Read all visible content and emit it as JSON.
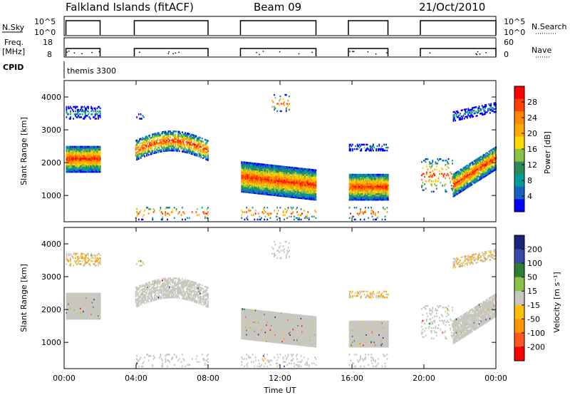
{
  "title": {
    "station": "Falkland Islands (fitACF)",
    "beam": "Beam 09",
    "date": "21/Oct/2010"
  },
  "header_panels": {
    "nsky_label": "N.Sky",
    "nsky_ticks": [
      "10^5",
      "10^0"
    ],
    "nsearch_label": "N.Search",
    "nsearch_ticks": [
      "10^5",
      "10^0"
    ],
    "freq_label": "Freq.",
    "freq_unit": "[MHz]",
    "freq_ticks": [
      "18",
      "8"
    ],
    "nave_label": "Nave",
    "nave_ticks": [
      "60",
      "0"
    ],
    "cpid_label": "CPID",
    "cpid_value": "themis 3300"
  },
  "chart_data": [
    {
      "type": "heatmap",
      "name": "power",
      "ylabel": "Slant Range [km]",
      "xlabel": "Time UT",
      "ylim": [
        200,
        4500
      ],
      "yticks": [
        "1000",
        "2000",
        "3000",
        "4000"
      ],
      "xticks": [
        "00:00",
        "04:00",
        "08:00",
        "12:00",
        "16:00",
        "20:00",
        "00:00"
      ],
      "colorbar": {
        "label": "Power [dB]",
        "ticks": [
          "28",
          "24",
          "20",
          "16",
          "12",
          "8",
          "4"
        ],
        "colors": [
          "#ff0000",
          "#ff4000",
          "#ff8800",
          "#ffaa00",
          "#ffd700",
          "#8bc34a",
          "#2e8b57",
          "#009b9b",
          "#1565c0",
          "#0000ff"
        ]
      },
      "segments": [
        {
          "start_h": 0.1,
          "end_h": 2.0
        },
        {
          "start_h": 3.9,
          "end_h": 8.0
        },
        {
          "start_h": 9.8,
          "end_h": 14.0
        },
        {
          "start_h": 15.8,
          "end_h": 18.0
        },
        {
          "start_h": 19.8,
          "end_h": 24.0
        }
      ]
    },
    {
      "type": "heatmap",
      "name": "velocity",
      "ylabel": "Slant Range [km]",
      "xlabel": "Time UT",
      "ylim": [
        200,
        4500
      ],
      "yticks": [
        "1000",
        "2000",
        "3000",
        "4000"
      ],
      "xticks": [
        "00:00",
        "04:00",
        "08:00",
        "12:00",
        "16:00",
        "20:00",
        "00:00"
      ],
      "colorbar": {
        "label": "Velocity [m s⁻¹]",
        "ticks": [
          "200",
          "100",
          "50",
          "15",
          "-15",
          "-50",
          "-100",
          "-200"
        ],
        "colors": [
          "#1a237e",
          "#3949ab",
          "#2e7d32",
          "#8bc34a",
          "#c8c8c0",
          "#ffc107",
          "#ff9800",
          "#ff5722",
          "#ff0000"
        ]
      }
    }
  ]
}
